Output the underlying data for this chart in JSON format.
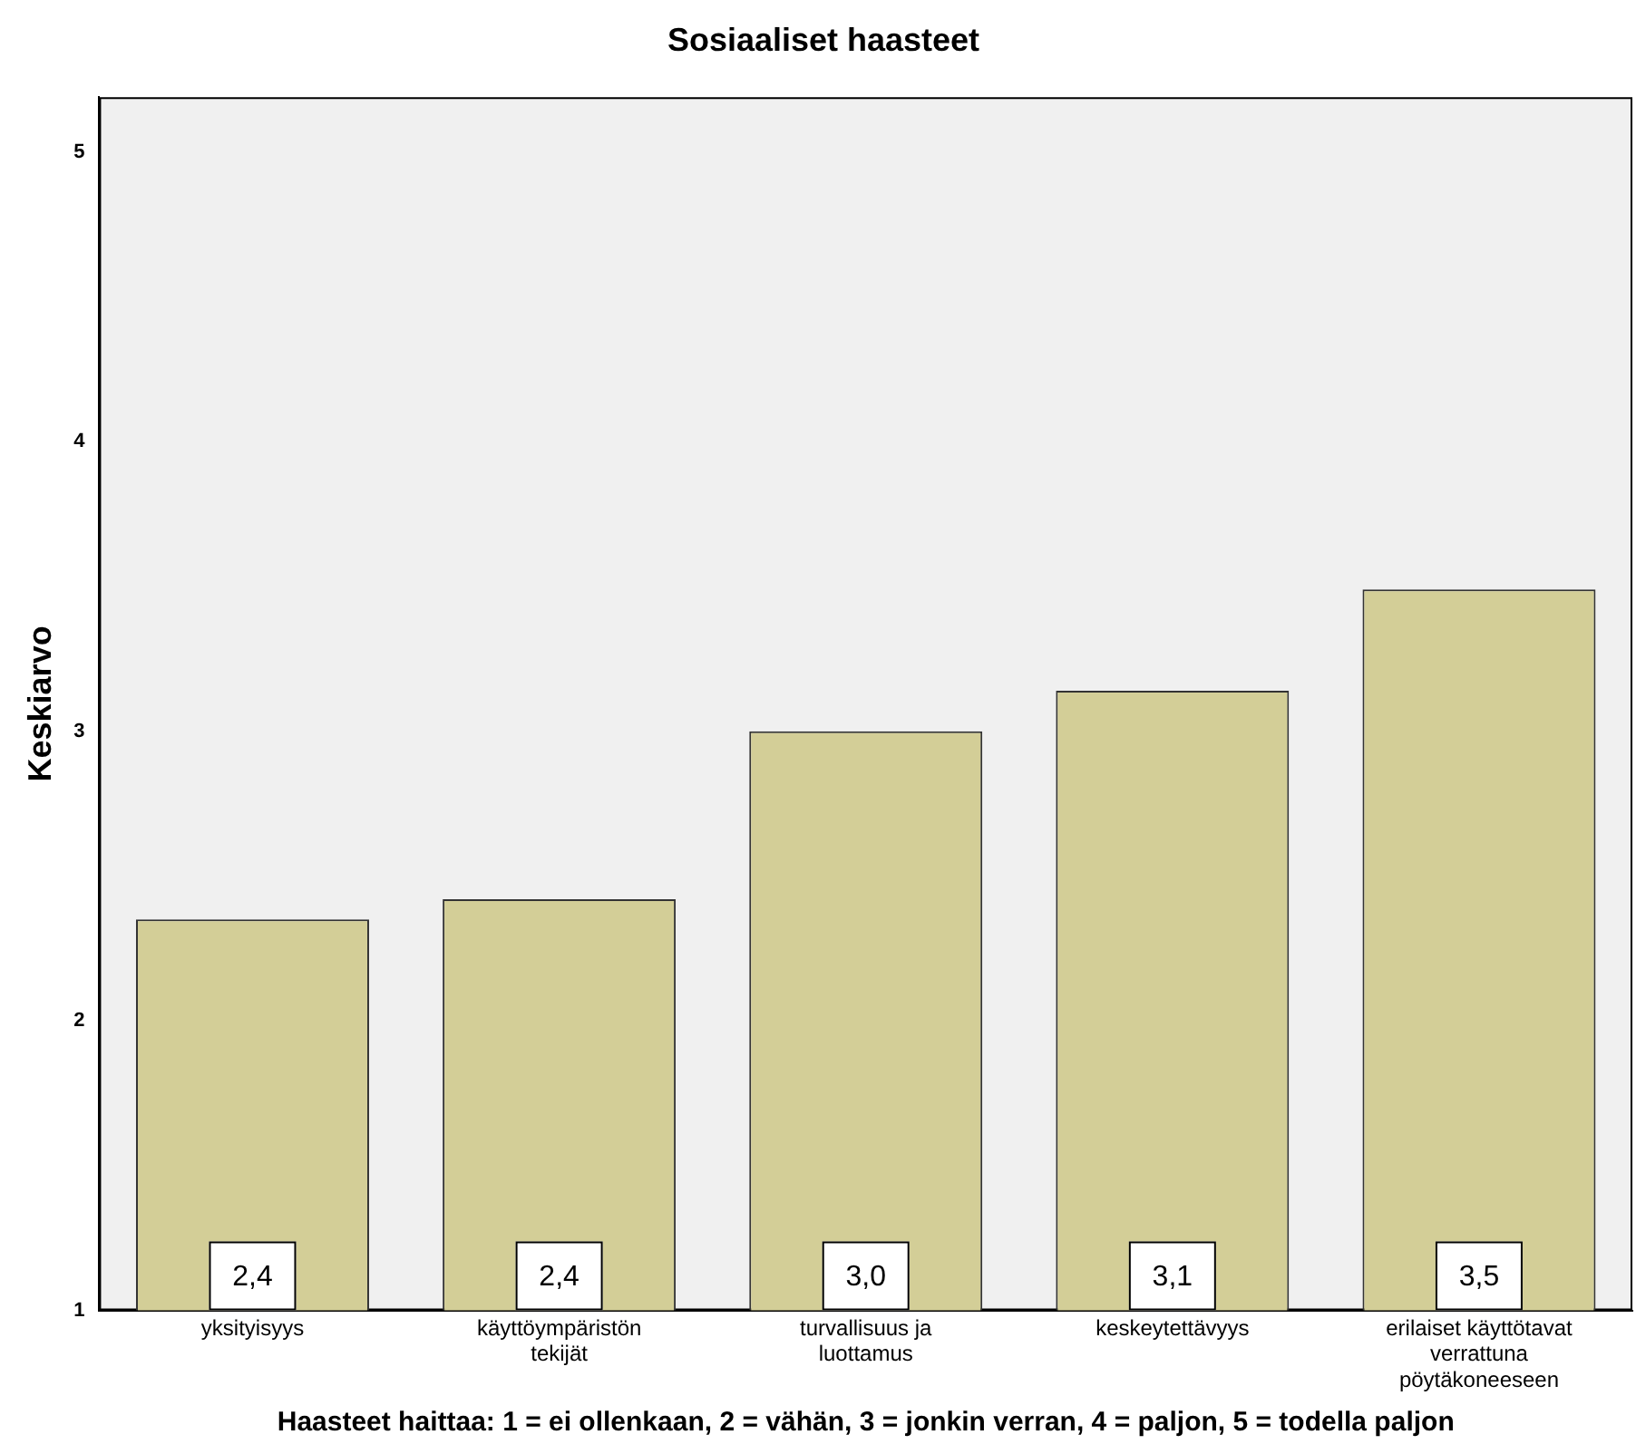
{
  "chart_data": {
    "type": "bar",
    "title": "Sosiaaliset haasteet",
    "xlabel": "Haasteet haittaa: 1 = ei ollenkaan, 2 = vähän, 3 = jonkin verran, 4 = paljon, 5 = todella paljon",
    "ylabel": "Keskiarvo",
    "categories": [
      "yksityisyys",
      "käyttöympäristön tekijät",
      "turvallisuus ja luottamus",
      "keskeytettävyys",
      "erilaiset käyttötavat verrattuna pöytäkoneeseen"
    ],
    "values": [
      2.35,
      2.42,
      3.0,
      3.14,
      3.49
    ],
    "value_labels": [
      "2,4",
      "2,4",
      "3,0",
      "3,1",
      "3,5"
    ],
    "color": "#d3ce97",
    "ylim": [
      1,
      5.19
    ],
    "yticks": [
      1,
      2,
      3,
      4,
      5
    ],
    "grid": false,
    "legend": false
  }
}
